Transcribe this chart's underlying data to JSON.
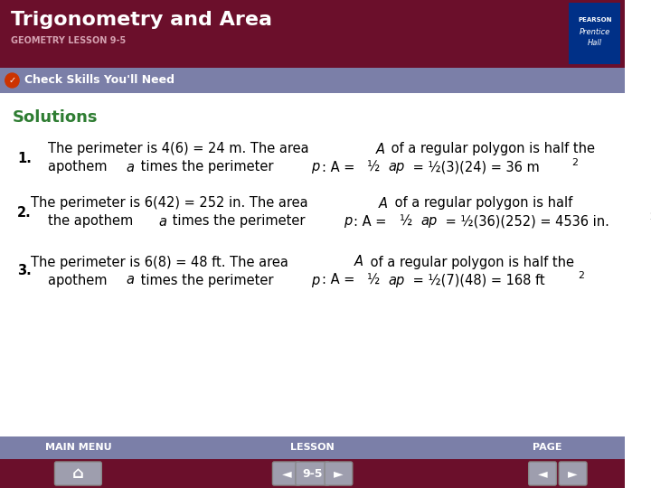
{
  "title": "Trigonometry and Area",
  "subtitle": "GEOMETRY LESSON 9-5",
  "header_bg": "#6b0f2b",
  "banner_bg": "#7b7fa8",
  "banner_text": "Check Skills You'll Need",
  "solutions_text": "Solutions",
  "solutions_color": "#2e7d32",
  "body_bg": "#ffffff",
  "footer_bg": "#7b7fa8",
  "footer_bar_bg": "#6b0f2b",
  "pearson_box_bg": "#003087",
  "item1_line1": "The perimeter is 4(6) = 24 m. The area ",
  "item1_line1b": "A",
  "item1_line1c": " of a regular polygon is half the",
  "item1_line2a": "apothem ",
  "item1_line2b": "a",
  "item1_line2c": " times the perimeter ",
  "item1_line2d": "p",
  "item1_line2e": ": A = ",
  "item1_line2f": "½",
  "item1_line2g": " ap = ",
  "item1_line2h": "½",
  "item1_line2i": "(3)(24) = 36 m",
  "item2_line1": "The perimeter is 6(42) = 252 in. The area ",
  "item2_line1b": "A",
  "item2_line1c": " of a regular polygon is half",
  "item2_line2a": "the apothem ",
  "item2_line2b": "a",
  "item2_line2c": " times the perimeter ",
  "item2_line2d": "p",
  "item2_line2e": ": A = ",
  "item2_line2f": "½",
  "item2_line2g": " ap = ",
  "item2_line2h": "½",
  "item2_line2i": "(36)(252) = 4536 in.",
  "item3_line1": "The perimeter is 6(8) = 48 ft. The area ",
  "item3_line1b": "A",
  "item3_line1c": " of a regular polygon is half the",
  "item3_line2a": "apothem ",
  "item3_line2b": "a",
  "item3_line2c": " times the perimeter ",
  "item3_line2d": "p",
  "item3_line2e": ": A = ",
  "item3_line2f": "½",
  "item3_line2g": " ap = ",
  "item3_line2h": "½",
  "item3_line2i": "(7)(48) = 168 ft",
  "footer_labels": [
    "MAIN MENU",
    "LESSON",
    "PAGE"
  ],
  "page_num": "9-5",
  "title_color": "#ffffff",
  "subtitle_color": "#d4a0a0",
  "text_color": "#000000",
  "nav_button_color": "#9e9eae"
}
